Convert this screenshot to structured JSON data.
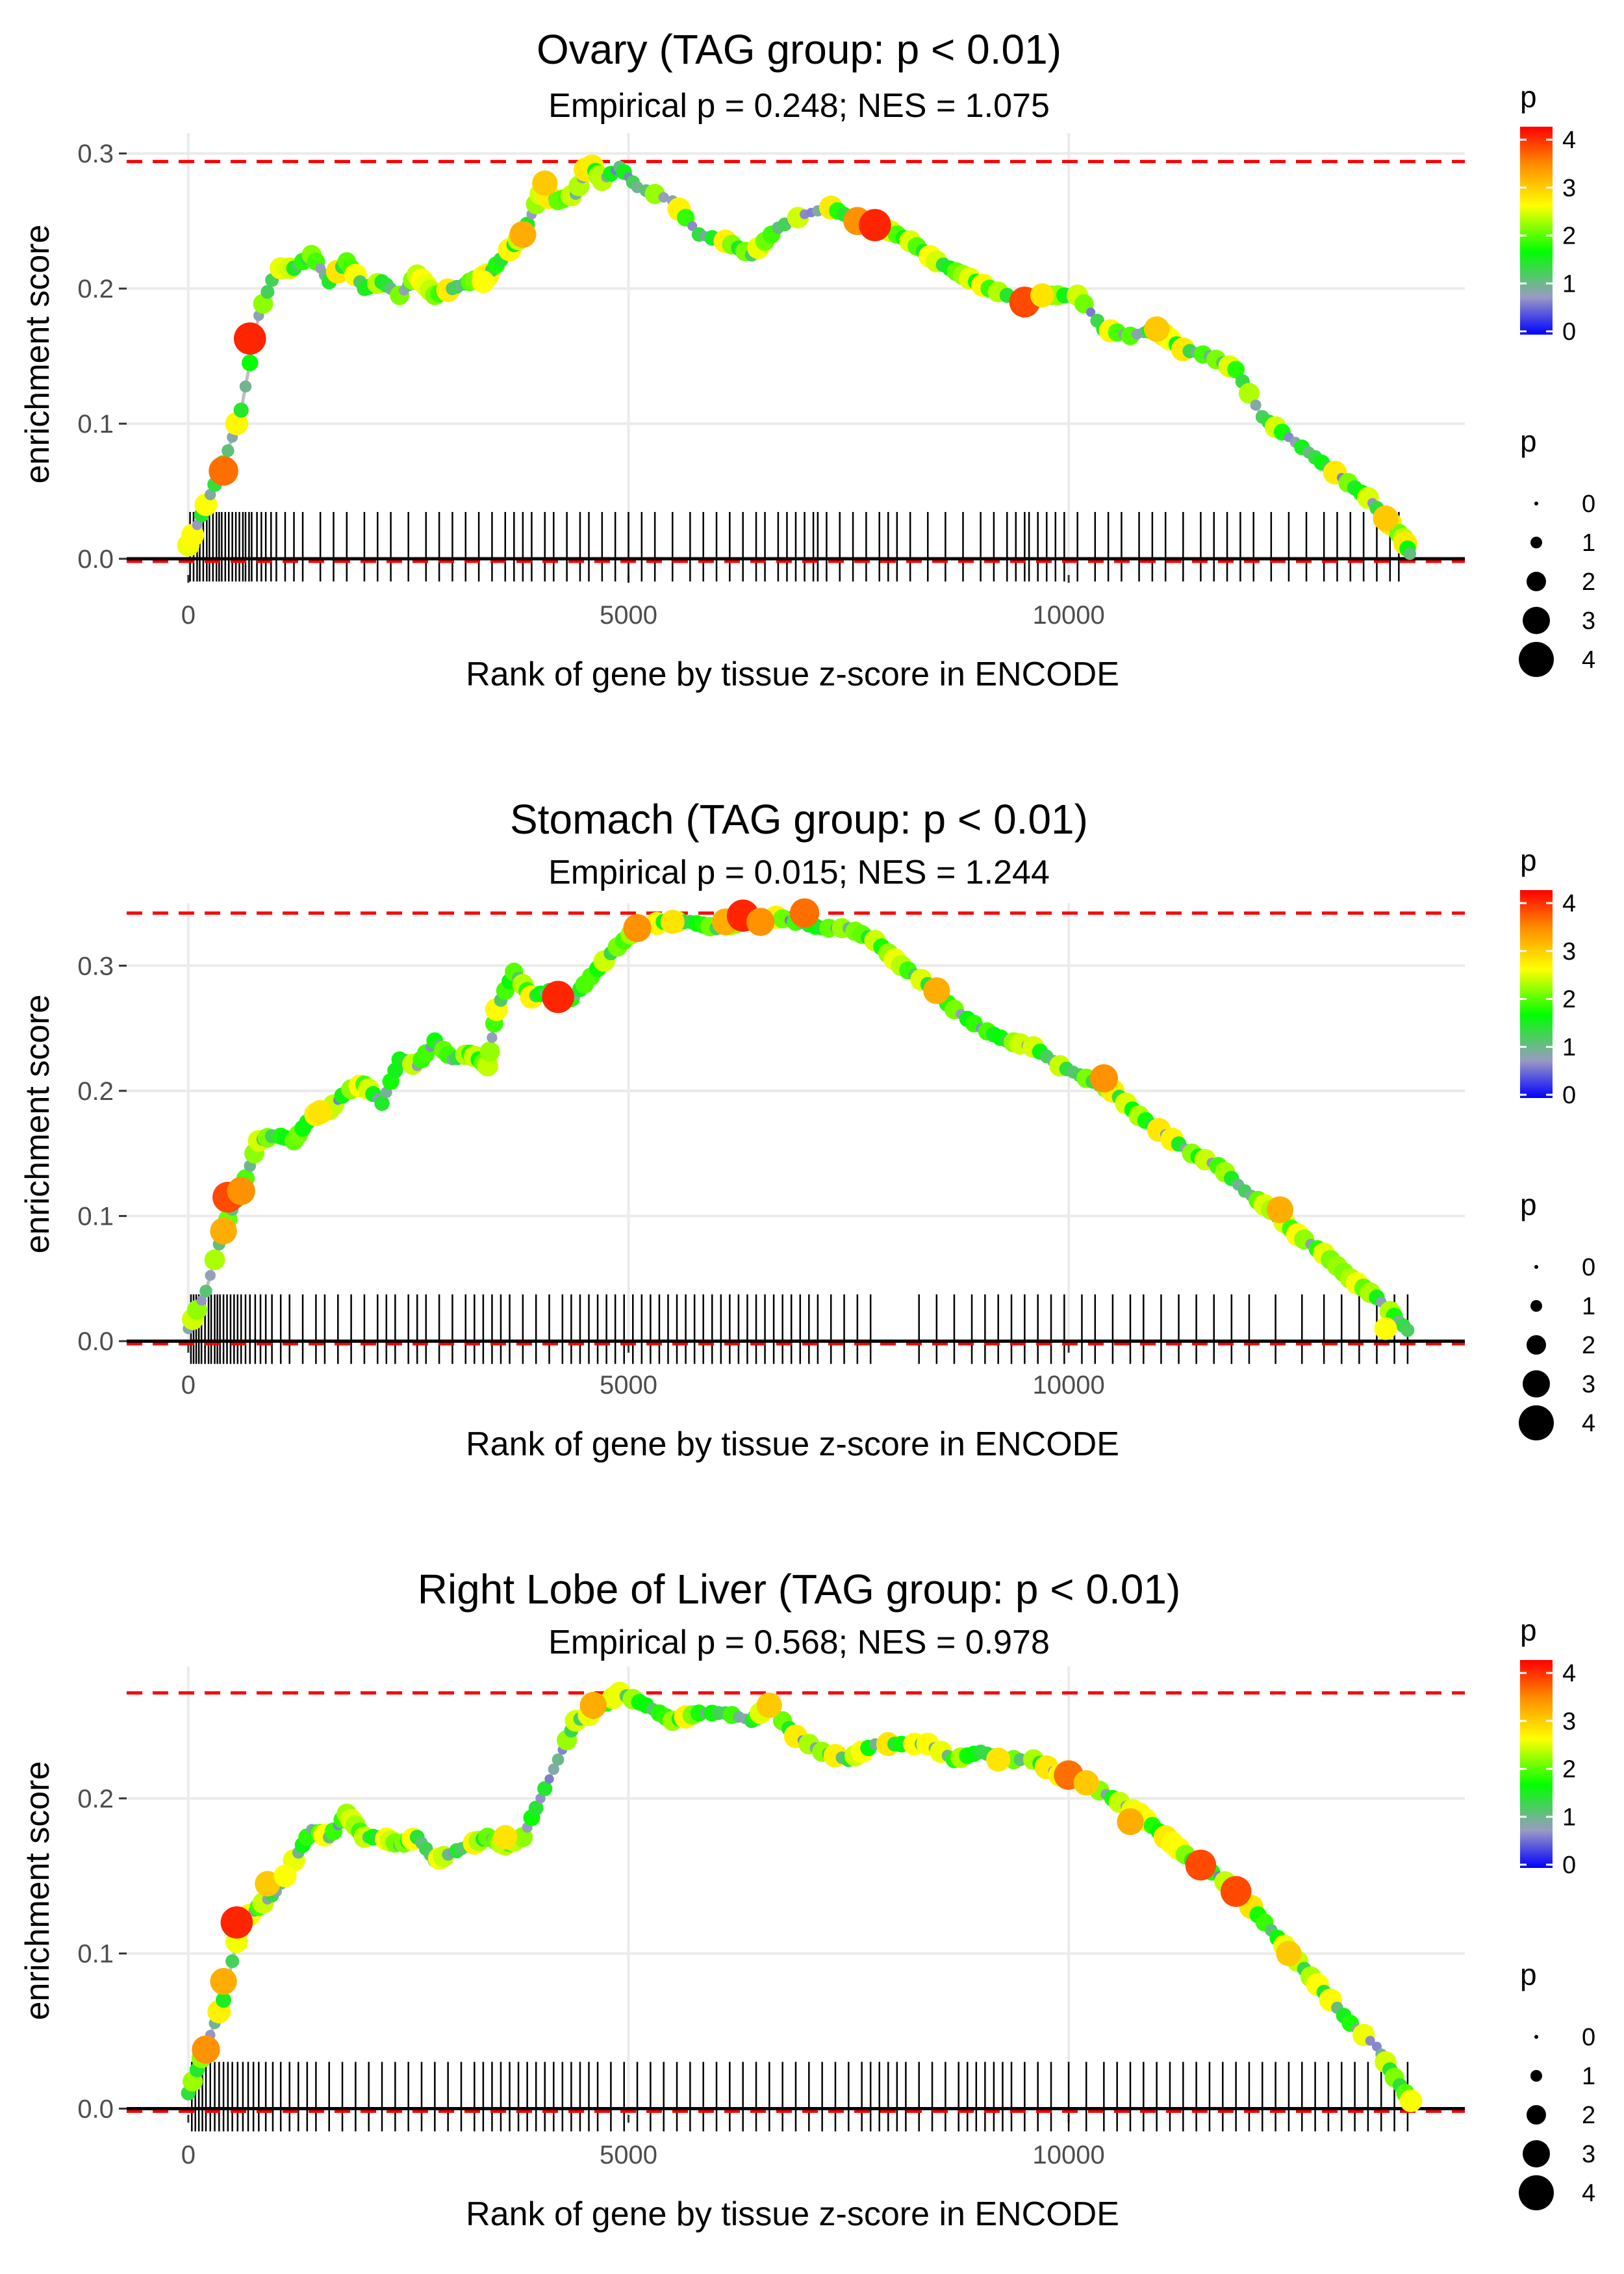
{
  "chart_data": [
    {
      "type": "scatter",
      "title": "Ovary (TAG group: p < 0.01)",
      "subtitle": "Empirical p = 0.248; NES = 1.075",
      "xlabel": "Rank of gene by tissue z-score in ENCODE",
      "ylabel": "enrichment score",
      "xlim": [
        -700,
        14500
      ],
      "ylim": [
        -0.012,
        0.315
      ],
      "x_ticks": [
        0,
        5000,
        10000
      ],
      "y_ticks": [
        0.0,
        0.1,
        0.2,
        0.3
      ],
      "y_tick_labels": [
        "0.0",
        "0.1",
        "0.2",
        "0.3"
      ],
      "max_es": 0.294,
      "n_genes": 13900,
      "trace": [
        [
          0,
          0.01
        ],
        [
          200,
          0.04
        ],
        [
          400,
          0.07
        ],
        [
          600,
          0.11
        ],
        [
          800,
          0.18
        ],
        [
          1000,
          0.215
        ],
        [
          1200,
          0.215
        ],
        [
          1400,
          0.225
        ],
        [
          1600,
          0.205
        ],
        [
          1800,
          0.22
        ],
        [
          2000,
          0.2
        ],
        [
          2200,
          0.205
        ],
        [
          2400,
          0.195
        ],
        [
          2600,
          0.21
        ],
        [
          2800,
          0.195
        ],
        [
          3000,
          0.2
        ],
        [
          3200,
          0.205
        ],
        [
          3400,
          0.21
        ],
        [
          3600,
          0.225
        ],
        [
          3800,
          0.24
        ],
        [
          4000,
          0.27
        ],
        [
          4200,
          0.265
        ],
        [
          4400,
          0.27
        ],
        [
          4550,
          0.294
        ],
        [
          4700,
          0.28
        ],
        [
          4900,
          0.29
        ],
        [
          5100,
          0.275
        ],
        [
          5500,
          0.265
        ],
        [
          5800,
          0.24
        ],
        [
          6100,
          0.235
        ],
        [
          6400,
          0.225
        ],
        [
          6700,
          0.245
        ],
        [
          7000,
          0.255
        ],
        [
          7300,
          0.26
        ],
        [
          7600,
          0.25
        ],
        [
          7900,
          0.245
        ],
        [
          8200,
          0.235
        ],
        [
          8500,
          0.22
        ],
        [
          8800,
          0.21
        ],
        [
          9100,
          0.2
        ],
        [
          9500,
          0.19
        ],
        [
          9800,
          0.195
        ],
        [
          10100,
          0.195
        ],
        [
          10400,
          0.17
        ],
        [
          10700,
          0.165
        ],
        [
          11000,
          0.17
        ],
        [
          11300,
          0.155
        ],
        [
          11600,
          0.15
        ],
        [
          11900,
          0.14
        ],
        [
          12200,
          0.105
        ],
        [
          12500,
          0.09
        ],
        [
          12800,
          0.075
        ],
        [
          13100,
          0.06
        ],
        [
          13400,
          0.045
        ],
        [
          13600,
          0.03
        ],
        [
          13800,
          0.015
        ],
        [
          13900,
          0.0
        ]
      ],
      "highlights": [
        [
          400,
          0.065,
          3.6
        ],
        [
          700,
          0.163,
          4.0
        ],
        [
          3350,
          0.205,
          2.6
        ],
        [
          3800,
          0.24,
          3.2
        ],
        [
          4050,
          0.278,
          3.0
        ],
        [
          7600,
          0.25,
          3.4
        ],
        [
          7800,
          0.247,
          4.0
        ],
        [
          9500,
          0.19,
          3.8
        ],
        [
          9700,
          0.195,
          2.8
        ],
        [
          11000,
          0.17,
          3.0
        ],
        [
          13600,
          0.03,
          3.0
        ]
      ],
      "rug": [
        20,
        60,
        100,
        130,
        170,
        210,
        240,
        280,
        320,
        350,
        380,
        420,
        460,
        500,
        540,
        580,
        620,
        650,
        690,
        720,
        780,
        830,
        880,
        940,
        1000,
        1100,
        1200,
        1300,
        1500,
        1650,
        1800,
        2000,
        2150,
        2300,
        2500,
        2700,
        2850,
        3000,
        3150,
        3300,
        3450,
        3600,
        3700,
        3800,
        3900,
        4050,
        4150,
        4300,
        4450,
        4550,
        4700,
        4850,
        5000,
        5150,
        5300,
        5500,
        5700,
        5850,
        6000,
        6150,
        6300,
        6450,
        6550,
        6700,
        6800,
        6900,
        7000,
        7100,
        7150,
        7250,
        7400,
        7550,
        7700,
        7850,
        7950,
        8050,
        8200,
        8400,
        8600,
        8800,
        9000,
        9150,
        9300,
        9400,
        9500,
        9550,
        9650,
        9750,
        9850,
        9950,
        10100,
        10300,
        10450,
        10600,
        10800,
        10950,
        11100,
        11300,
        11500,
        11650,
        11800,
        11950,
        12100,
        12300,
        12500,
        12700,
        12900,
        13050,
        13200,
        13350,
        13500,
        13650,
        13750
      ]
    },
    {
      "type": "scatter",
      "title": "Stomach (TAG group: p < 0.01)",
      "subtitle": "Empirical p = 0.015; NES = 1.244",
      "xlabel": "Rank of gene by tissue z-score in ENCODE",
      "ylabel": "enrichment score",
      "xlim": [
        -700,
        14500
      ],
      "ylim": [
        -0.003,
        0.35
      ],
      "x_ticks": [
        0,
        5000,
        10000
      ],
      "y_ticks": [
        0.0,
        0.1,
        0.2,
        0.3
      ],
      "y_tick_labels": [
        "0.0",
        "0.1",
        "0.2",
        "0.3"
      ],
      "max_es": 0.342,
      "n_genes": 13900,
      "trace": [
        [
          0,
          0.01
        ],
        [
          200,
          0.04
        ],
        [
          400,
          0.09
        ],
        [
          600,
          0.12
        ],
        [
          800,
          0.16
        ],
        [
          1000,
          0.165
        ],
        [
          1200,
          0.16
        ],
        [
          1400,
          0.18
        ],
        [
          1600,
          0.185
        ],
        [
          1800,
          0.2
        ],
        [
          2000,
          0.205
        ],
        [
          2200,
          0.19
        ],
        [
          2400,
          0.225
        ],
        [
          2600,
          0.22
        ],
        [
          2800,
          0.24
        ],
        [
          3000,
          0.225
        ],
        [
          3200,
          0.23
        ],
        [
          3400,
          0.22
        ],
        [
          3500,
          0.265
        ],
        [
          3700,
          0.295
        ],
        [
          3900,
          0.275
        ],
        [
          4100,
          0.28
        ],
        [
          4300,
          0.27
        ],
        [
          4500,
          0.285
        ],
        [
          4800,
          0.31
        ],
        [
          5100,
          0.33
        ],
        [
          5400,
          0.335
        ],
        [
          5700,
          0.335
        ],
        [
          6000,
          0.33
        ],
        [
          6300,
          0.335
        ],
        [
          6600,
          0.34
        ],
        [
          6900,
          0.335
        ],
        [
          7200,
          0.33
        ],
        [
          7500,
          0.33
        ],
        [
          7800,
          0.32
        ],
        [
          8100,
          0.3
        ],
        [
          8400,
          0.285
        ],
        [
          8700,
          0.265
        ],
        [
          9000,
          0.25
        ],
        [
          9300,
          0.24
        ],
        [
          9600,
          0.235
        ],
        [
          9900,
          0.22
        ],
        [
          10200,
          0.21
        ],
        [
          10500,
          0.2
        ],
        [
          10800,
          0.18
        ],
        [
          11100,
          0.165
        ],
        [
          11400,
          0.15
        ],
        [
          11700,
          0.14
        ],
        [
          12000,
          0.12
        ],
        [
          12300,
          0.105
        ],
        [
          12600,
          0.085
        ],
        [
          12900,
          0.07
        ],
        [
          13200,
          0.05
        ],
        [
          13500,
          0.035
        ],
        [
          13700,
          0.02
        ],
        [
          13900,
          0.005
        ]
      ],
      "highlights": [
        [
          400,
          0.088,
          3.2
        ],
        [
          450,
          0.115,
          3.8
        ],
        [
          600,
          0.12,
          3.4
        ],
        [
          1500,
          0.183,
          2.8
        ],
        [
          4200,
          0.275,
          4.0
        ],
        [
          5100,
          0.33,
          3.4
        ],
        [
          5500,
          0.335,
          2.8
        ],
        [
          6100,
          0.335,
          3.2
        ],
        [
          6300,
          0.34,
          4.0
        ],
        [
          6500,
          0.335,
          3.4
        ],
        [
          7000,
          0.342,
          3.6
        ],
        [
          8500,
          0.28,
          3.2
        ],
        [
          10400,
          0.21,
          3.4
        ],
        [
          12400,
          0.105,
          3.2
        ],
        [
          13600,
          0.01,
          2.6
        ]
      ],
      "rug": [
        30,
        60,
        90,
        120,
        150,
        190,
        230,
        260,
        300,
        330,
        360,
        400,
        440,
        480,
        520,
        560,
        600,
        650,
        700,
        760,
        820,
        880,
        950,
        1050,
        1150,
        1300,
        1450,
        1550,
        1700,
        1850,
        2000,
        2150,
        2250,
        2350,
        2500,
        2600,
        2700,
        2850,
        3000,
        3150,
        3250,
        3350,
        3450,
        3550,
        3650,
        3800,
        3950,
        4100,
        4250,
        4350,
        4450,
        4550,
        4650,
        4750,
        4850,
        4950,
        5050,
        5150,
        5250,
        5350,
        5450,
        5550,
        5650,
        5750,
        5850,
        5950,
        6050,
        6150,
        6250,
        6350,
        6450,
        6550,
        6650,
        6750,
        6850,
        6950,
        7050,
        7150,
        7300,
        7450,
        7600,
        7750,
        8300,
        8500,
        8700,
        8900,
        9050,
        9200,
        9350,
        9500,
        9650,
        9800,
        9950,
        10150,
        10300,
        10500,
        10700,
        10850,
        11050,
        11250,
        11450,
        11650,
        11850,
        12050,
        12350,
        12650,
        12900,
        13100,
        13300,
        13500,
        13700,
        13850
      ]
    },
    {
      "type": "scatter",
      "title": "Right Lobe of Liver (TAG group: p < 0.01)",
      "subtitle": "Empirical p = 0.568; NES = 0.978",
      "xlabel": "Rank of gene by tissue z-score in ENCODE",
      "ylabel": "enrichment score",
      "xlim": [
        -700,
        14500
      ],
      "ylim": [
        -0.004,
        0.285
      ],
      "x_ticks": [
        0,
        5000,
        10000
      ],
      "y_ticks": [
        0.0,
        0.1,
        0.2
      ],
      "y_tick_labels": [
        "0.0",
        "0.1",
        "0.2"
      ],
      "max_es": 0.268,
      "n_genes": 14000,
      "trace": [
        [
          0,
          0.01
        ],
        [
          200,
          0.04
        ],
        [
          400,
          0.07
        ],
        [
          600,
          0.12
        ],
        [
          800,
          0.13
        ],
        [
          1000,
          0.14
        ],
        [
          1200,
          0.16
        ],
        [
          1400,
          0.18
        ],
        [
          1600,
          0.175
        ],
        [
          1800,
          0.19
        ],
        [
          2000,
          0.175
        ],
        [
          2200,
          0.175
        ],
        [
          2400,
          0.17
        ],
        [
          2600,
          0.175
        ],
        [
          2800,
          0.16
        ],
        [
          3000,
          0.165
        ],
        [
          3200,
          0.17
        ],
        [
          3400,
          0.175
        ],
        [
          3600,
          0.17
        ],
        [
          3800,
          0.175
        ],
        [
          4000,
          0.2
        ],
        [
          4200,
          0.225
        ],
        [
          4400,
          0.25
        ],
        [
          4600,
          0.255
        ],
        [
          4900,
          0.268
        ],
        [
          5200,
          0.26
        ],
        [
          5500,
          0.25
        ],
        [
          5800,
          0.255
        ],
        [
          6100,
          0.255
        ],
        [
          6400,
          0.25
        ],
        [
          6600,
          0.26
        ],
        [
          6900,
          0.24
        ],
        [
          7200,
          0.23
        ],
        [
          7500,
          0.225
        ],
        [
          7800,
          0.235
        ],
        [
          8100,
          0.235
        ],
        [
          8400,
          0.235
        ],
        [
          8700,
          0.225
        ],
        [
          9000,
          0.23
        ],
        [
          9300,
          0.225
        ],
        [
          9600,
          0.225
        ],
        [
          9900,
          0.215
        ],
        [
          10200,
          0.21
        ],
        [
          10500,
          0.2
        ],
        [
          10800,
          0.19
        ],
        [
          11100,
          0.175
        ],
        [
          11400,
          0.16
        ],
        [
          11700,
          0.15
        ],
        [
          12000,
          0.135
        ],
        [
          12300,
          0.115
        ],
        [
          12600,
          0.095
        ],
        [
          12900,
          0.075
        ],
        [
          13200,
          0.055
        ],
        [
          13500,
          0.04
        ],
        [
          13700,
          0.02
        ],
        [
          13950,
          0.0
        ]
      ],
      "highlights": [
        [
          200,
          0.038,
          3.4
        ],
        [
          400,
          0.082,
          3.2
        ],
        [
          550,
          0.12,
          4.0
        ],
        [
          900,
          0.145,
          3.0
        ],
        [
          1100,
          0.15,
          2.6
        ],
        [
          3600,
          0.175,
          2.8
        ],
        [
          4600,
          0.26,
          3.2
        ],
        [
          6600,
          0.26,
          3.0
        ],
        [
          9200,
          0.225,
          2.8
        ],
        [
          10000,
          0.215,
          3.6
        ],
        [
          10200,
          0.21,
          3.0
        ],
        [
          10700,
          0.185,
          3.2
        ],
        [
          11500,
          0.157,
          3.8
        ],
        [
          11900,
          0.14,
          3.8
        ],
        [
          12500,
          0.1,
          3.0
        ]
      ],
      "rug": [
        40,
        80,
        120,
        160,
        200,
        250,
        300,
        350,
        400,
        450,
        500,
        560,
        620,
        680,
        740,
        800,
        880,
        960,
        1050,
        1150,
        1250,
        1350,
        1450,
        1600,
        1750,
        1900,
        2050,
        2200,
        2350,
        2500,
        2650,
        2800,
        2950,
        3100,
        3250,
        3350,
        3450,
        3550,
        3650,
        3750,
        3850,
        3950,
        4050,
        4150,
        4250,
        4350,
        4450,
        4550,
        4650,
        4800,
        4950,
        5100,
        5250,
        5400,
        5550,
        5700,
        5850,
        6000,
        6150,
        6300,
        6450,
        6600,
        6750,
        6900,
        7050,
        7200,
        7350,
        7500,
        7650,
        7750,
        7850,
        7950,
        8050,
        8150,
        8300,
        8450,
        8600,
        8750,
        8850,
        8950,
        9050,
        9150,
        9250,
        9350,
        9500,
        9650,
        9800,
        10000,
        10200,
        10400,
        10550,
        10700,
        10850,
        11000,
        11150,
        11300,
        11450,
        11600,
        11750,
        11900,
        12050,
        12200,
        12350,
        12500,
        12650,
        12800,
        12950,
        13100,
        13250,
        13400,
        13550,
        13700,
        13850
      ]
    }
  ],
  "legend": {
    "color_title": "p",
    "color_ticks": [
      "0",
      "1",
      "2",
      "3",
      "4"
    ],
    "size_title": "p",
    "size_ticks": [
      "0",
      "1",
      "2",
      "3",
      "4"
    ]
  },
  "colors": {
    "trace": "#bebebe",
    "max_line": "#ff0000",
    "zero_line": "#000000",
    "grid": "#ebebeb",
    "gradient": [
      "#0000ff",
      "#9a9ac4",
      "#00ff00",
      "#ffff00",
      "#ff8c00",
      "#ff0000"
    ]
  }
}
